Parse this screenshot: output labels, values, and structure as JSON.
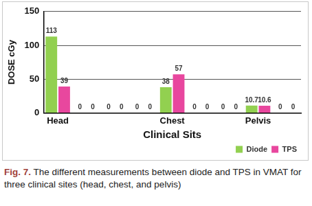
{
  "chart_data": {
    "type": "bar",
    "categories": [
      "Head",
      null,
      null,
      null,
      "Chest",
      null,
      null,
      "Pelvis",
      null
    ],
    "series": [
      {
        "name": "Diode",
        "color": "#92d050",
        "values": [
          113,
          0,
          0,
          0,
          38,
          0,
          0,
          10.7,
          0
        ]
      },
      {
        "name": "TPS",
        "color": "#e8479e",
        "values": [
          39,
          0,
          0,
          0,
          57,
          0,
          0,
          10.6,
          0
        ]
      }
    ],
    "x_label": "Clinical Sits",
    "y_label": "DOSE cGy",
    "ylim": [
      0,
      150
    ],
    "yticks": [
      0,
      50,
      100,
      150
    ],
    "grid": true,
    "legend": "lower right",
    "data_labels": true
  },
  "caption": {
    "label": "Fig. 7.",
    "text": "The different measurements between diode and TPS in VMAT for three clinical sites (head, chest, and pelvis)"
  }
}
